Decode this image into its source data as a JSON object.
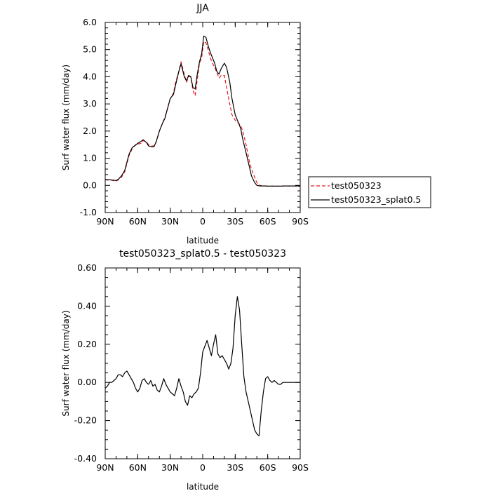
{
  "chart_data": [
    {
      "type": "line",
      "title": "JJA",
      "xlabel": "latitude",
      "ylabel": "Surf water flux (mm/day)",
      "xlim": [
        90,
        -90
      ],
      "ylim": [
        -1.0,
        6.0
      ],
      "x_ticks": [
        {
          "value": 90,
          "label": "90N"
        },
        {
          "value": 60,
          "label": "60N"
        },
        {
          "value": 30,
          "label": "30N"
        },
        {
          "value": 0,
          "label": "0"
        },
        {
          "value": -30,
          "label": "30S"
        },
        {
          "value": -60,
          "label": "60S"
        },
        {
          "value": -90,
          "label": "90S"
        }
      ],
      "y_ticks": [
        {
          "value": -1.0,
          "label": "-1.0"
        },
        {
          "value": 0.0,
          "label": "0.0"
        },
        {
          "value": 1.0,
          "label": "1.0"
        },
        {
          "value": 2.0,
          "label": "2.0"
        },
        {
          "value": 3.0,
          "label": "3.0"
        },
        {
          "value": 4.0,
          "label": "4.0"
        },
        {
          "value": 5.0,
          "label": "5.0"
        },
        {
          "value": 6.0,
          "label": "6.0"
        }
      ],
      "legend": {
        "placement": "right-outside"
      },
      "series": [
        {
          "name": "test050323",
          "color": "#e8171f",
          "style": "dashed",
          "x": [
            90,
            85,
            80,
            78,
            75,
            72,
            70,
            68,
            65,
            62,
            60,
            57,
            55,
            52,
            50,
            47,
            45,
            43,
            40,
            37,
            35,
            32,
            30,
            27,
            25,
            22,
            20,
            17,
            15,
            13,
            11,
            9,
            7,
            5,
            3,
            1,
            -1,
            -3,
            -5,
            -7,
            -9,
            -11,
            -13,
            -15,
            -17,
            -20,
            -22,
            -25,
            -27,
            -30,
            -33,
            -35,
            -37,
            -40,
            -43,
            -45,
            -48,
            -50,
            -53,
            -55,
            -58,
            -60,
            -63,
            -65,
            -68,
            -70,
            -72,
            -75,
            -78,
            -80,
            -83,
            -85,
            -88,
            -90
          ],
          "y": [
            0.2,
            0.2,
            0.15,
            0.2,
            0.3,
            0.5,
            0.8,
            1.1,
            1.35,
            1.5,
            1.52,
            1.55,
            1.65,
            1.6,
            1.5,
            1.45,
            1.45,
            1.6,
            2.0,
            2.3,
            2.5,
            2.9,
            3.2,
            3.4,
            3.8,
            4.2,
            4.55,
            4.1,
            3.8,
            4.0,
            4.0,
            3.5,
            3.3,
            3.9,
            4.5,
            4.7,
            5.3,
            5.25,
            5.0,
            4.7,
            4.5,
            4.35,
            4.15,
            3.95,
            4.05,
            4.05,
            3.6,
            3.0,
            2.6,
            2.4,
            2.3,
            2.2,
            2.0,
            1.5,
            0.9,
            0.6,
            0.3,
            0.1,
            0.0,
            -0.02,
            -0.02,
            -0.03,
            -0.03,
            -0.02,
            -0.03,
            -0.03,
            -0.03,
            -0.02,
            -0.02,
            -0.02,
            -0.02,
            -0.02,
            -0.03,
            -0.03
          ]
        },
        {
          "name": "test050323_splat0.5",
          "color": "#000000",
          "style": "solid",
          "x": [
            90,
            85,
            80,
            78,
            75,
            72,
            70,
            68,
            65,
            62,
            60,
            57,
            55,
            52,
            50,
            47,
            45,
            43,
            40,
            37,
            35,
            32,
            30,
            27,
            25,
            22,
            20,
            17,
            15,
            13,
            11,
            9,
            7,
            5,
            3,
            1,
            -1,
            -3,
            -5,
            -7,
            -9,
            -11,
            -13,
            -15,
            -17,
            -20,
            -22,
            -25,
            -27,
            -30,
            -33,
            -35,
            -37,
            -40,
            -43,
            -45,
            -48,
            -50,
            -53,
            -55,
            -58,
            -60,
            -63,
            -65,
            -68,
            -70,
            -72,
            -75,
            -78,
            -80,
            -83,
            -85,
            -88,
            -90
          ],
          "y": [
            0.22,
            0.2,
            0.18,
            0.22,
            0.35,
            0.55,
            0.85,
            1.15,
            1.4,
            1.48,
            1.55,
            1.62,
            1.68,
            1.58,
            1.45,
            1.42,
            1.42,
            1.6,
            2.0,
            2.3,
            2.45,
            2.9,
            3.2,
            3.35,
            3.7,
            4.2,
            4.48,
            4.0,
            3.85,
            4.05,
            4.0,
            3.6,
            3.55,
            4.1,
            4.55,
            4.85,
            5.5,
            5.45,
            5.15,
            4.9,
            4.7,
            4.5,
            4.2,
            4.1,
            4.3,
            4.5,
            4.35,
            3.8,
            3.2,
            2.6,
            2.3,
            2.1,
            1.7,
            1.2,
            0.7,
            0.35,
            0.1,
            0.0,
            -0.02,
            -0.02,
            -0.02,
            -0.03,
            -0.03,
            -0.03,
            -0.03,
            -0.03,
            -0.03,
            -0.02,
            -0.02,
            -0.02,
            -0.02,
            -0.02,
            -0.02,
            -0.03
          ]
        }
      ]
    },
    {
      "type": "line",
      "title": "test050323_splat0.5 - test050323",
      "xlabel": "latitude",
      "ylabel": "Surf water flux (mm/day)",
      "xlim": [
        90,
        -90
      ],
      "ylim": [
        -0.4,
        0.6
      ],
      "x_ticks": [
        {
          "value": 90,
          "label": "90N"
        },
        {
          "value": 60,
          "label": "60N"
        },
        {
          "value": 30,
          "label": "30N"
        },
        {
          "value": 0,
          "label": "0"
        },
        {
          "value": -30,
          "label": "30S"
        },
        {
          "value": -60,
          "label": "60S"
        },
        {
          "value": -90,
          "label": "90S"
        }
      ],
      "y_ticks": [
        {
          "value": -0.4,
          "label": "-0.40"
        },
        {
          "value": -0.2,
          "label": "-0.20"
        },
        {
          "value": 0.0,
          "label": "0.00"
        },
        {
          "value": 0.2,
          "label": "0.20"
        },
        {
          "value": 0.4,
          "label": "0.40"
        },
        {
          "value": 0.6,
          "label": "0.60"
        }
      ],
      "series": [
        {
          "color": "#000000",
          "style": "solid",
          "x": [
            90,
            88,
            86,
            84,
            82,
            80,
            78,
            76,
            74,
            72,
            70,
            68,
            66,
            64,
            62,
            60,
            58,
            56,
            54,
            52,
            50,
            48,
            46,
            44,
            42,
            40,
            38,
            36,
            34,
            32,
            30,
            28,
            26,
            24,
            22,
            20,
            18,
            16,
            14,
            12,
            10,
            8,
            6,
            4,
            2,
            0,
            -2,
            -4,
            -6,
            -8,
            -10,
            -12,
            -14,
            -16,
            -18,
            -20,
            -22,
            -24,
            -26,
            -28,
            -30,
            -32,
            -34,
            -36,
            -38,
            -40,
            -42,
            -44,
            -46,
            -48,
            -50,
            -52,
            -54,
            -56,
            -58,
            -60,
            -62,
            -64,
            -66,
            -68,
            -70,
            -72,
            -74,
            -76,
            -78,
            -80,
            -82,
            -84,
            -86,
            -88,
            -90
          ],
          "y": [
            -0.03,
            -0.02,
            0.0,
            0.0,
            0.01,
            0.02,
            0.04,
            0.04,
            0.03,
            0.05,
            0.06,
            0.04,
            0.02,
            0.0,
            -0.03,
            -0.05,
            -0.03,
            0.01,
            0.02,
            0.0,
            -0.01,
            0.01,
            -0.02,
            -0.01,
            -0.04,
            -0.05,
            -0.02,
            0.02,
            -0.01,
            -0.03,
            -0.05,
            -0.06,
            -0.07,
            -0.03,
            0.02,
            -0.02,
            -0.05,
            -0.1,
            -0.12,
            -0.07,
            -0.08,
            -0.06,
            -0.05,
            -0.03,
            0.05,
            0.16,
            0.19,
            0.22,
            0.18,
            0.14,
            0.2,
            0.25,
            0.15,
            0.13,
            0.14,
            0.12,
            0.1,
            0.07,
            0.1,
            0.18,
            0.35,
            0.45,
            0.38,
            0.2,
            0.03,
            -0.05,
            -0.1,
            -0.15,
            -0.2,
            -0.25,
            -0.27,
            -0.28,
            -0.15,
            -0.05,
            0.02,
            0.03,
            0.01,
            0.0,
            0.01,
            0.0,
            -0.01,
            -0.01,
            0.0,
            0.0,
            0.0,
            0.0,
            0.0,
            0.0,
            0.0,
            0.0,
            0.0
          ]
        }
      ]
    }
  ]
}
